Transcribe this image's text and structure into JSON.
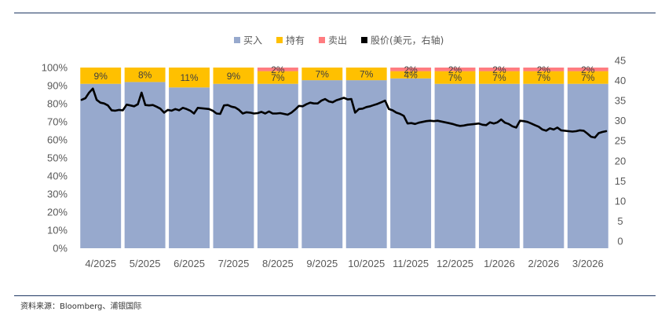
{
  "source_label": "资料来源：Bloomberg、浦银国际",
  "chart_data": {
    "type": "bar",
    "stacked": true,
    "categories": [
      "4/2025",
      "5/2025",
      "6/2025",
      "7/2025",
      "8/2025",
      "9/2025",
      "10/2025",
      "11/2025",
      "12/2025",
      "1/2026",
      "2/2026",
      "3/2026"
    ],
    "series": [
      {
        "name": "买入",
        "color": "#97a9cd",
        "values": [
          91,
          92,
          89,
          91,
          91,
          93,
          93,
          94,
          91,
          91,
          91,
          91
        ]
      },
      {
        "name": "持有",
        "color": "#ffc000",
        "values": [
          9,
          8,
          11,
          9,
          7,
          7,
          7,
          4,
          7,
          7,
          7,
          7
        ]
      },
      {
        "name": "卖出",
        "color": "#ff7c80",
        "values": [
          0,
          0,
          0,
          0,
          2,
          0,
          0,
          2,
          2,
          2,
          2,
          2
        ]
      }
    ],
    "bar_labels": [
      {
        "hold": "9%",
        "sell": ""
      },
      {
        "hold": "8%",
        "sell": ""
      },
      {
        "hold": "11%",
        "sell": ""
      },
      {
        "hold": "9%",
        "sell": ""
      },
      {
        "hold": "7%",
        "sell": "2%"
      },
      {
        "hold": "7%",
        "sell": ""
      },
      {
        "hold": "7%",
        "sell": ""
      },
      {
        "hold": "4%",
        "sell": "2%"
      },
      {
        "hold": "7%",
        "sell": "2%"
      },
      {
        "hold": "7%",
        "sell": "2%"
      },
      {
        "hold": "7%",
        "sell": "2%"
      },
      {
        "hold": "7%",
        "sell": "2%"
      }
    ],
    "line_series": {
      "name": "股价(美元，右轴)",
      "color": "#000000",
      "values": [
        35.2,
        35.6,
        37.0,
        38.0,
        35.2,
        34.5,
        34.3,
        33.8,
        32.6,
        32.5,
        32.7,
        32.6,
        34.0,
        33.8,
        33.6,
        34.1,
        37.0,
        33.9,
        33.8,
        33.9,
        33.5,
        33.0,
        32.0,
        32.7,
        32.5,
        32.9,
        32.6,
        33.2,
        32.9,
        32.5,
        31.8,
        33.2,
        33.1,
        33.0,
        32.9,
        32.5,
        31.8,
        31.7,
        33.8,
        33.9,
        33.5,
        33.3,
        32.7,
        31.8,
        32.1,
        32.0,
        31.8,
        31.9,
        32.2,
        31.8,
        32.3,
        31.8,
        31.8,
        31.9,
        31.7,
        31.5,
        32.0,
        32.8,
        33.7,
        33.6,
        34.1,
        34.5,
        34.3,
        34.3,
        35.0,
        35.4,
        34.8,
        34.6,
        35.1,
        35.4,
        35.7,
        35.3,
        35.4,
        32.0,
        32.9,
        33.0,
        33.4,
        33.6,
        33.9,
        34.2,
        34.6,
        35.0,
        32.9,
        32.6,
        32.0,
        31.7,
        31.2,
        29.3,
        29.4,
        29.2,
        29.5,
        29.7,
        29.9,
        30.0,
        29.9,
        30.0,
        29.8,
        29.6,
        29.4,
        29.2,
        28.9,
        28.7,
        28.8,
        29.0,
        29.1,
        29.2,
        29.3,
        29.0,
        28.9,
        29.6,
        29.3,
        29.6,
        30.3,
        29.5,
        29.2,
        28.6,
        28.3,
        30.0,
        29.9,
        29.7,
        29.3,
        28.9,
        28.5,
        27.8,
        27.5,
        28.1,
        27.8,
        28.3,
        27.6,
        27.5,
        27.4,
        27.3,
        27.4,
        27.6,
        27.5,
        26.8,
        26.0,
        25.8,
        26.9,
        27.2,
        27.4
      ]
    },
    "y_left": {
      "min": 0,
      "max": 100,
      "step": 10,
      "format": "percent",
      "ticks": [
        "0%",
        "10%",
        "20%",
        "30%",
        "40%",
        "50%",
        "60%",
        "70%",
        "80%",
        "90%",
        "100%"
      ]
    },
    "y_right": {
      "min": 0,
      "max": 45,
      "step": 5,
      "ticks": [
        "0",
        "5",
        "10",
        "15",
        "20",
        "25",
        "30",
        "35",
        "40",
        "45"
      ]
    },
    "legend": [
      {
        "label": "买入",
        "color": "#97a9cd"
      },
      {
        "label": "持有",
        "color": "#ffc000"
      },
      {
        "label": "卖出",
        "color": "#ff7c80"
      },
      {
        "label": "股价(美元，右轴)",
        "color": "#000000"
      }
    ],
    "legend_position": "top-center",
    "grid": false
  }
}
